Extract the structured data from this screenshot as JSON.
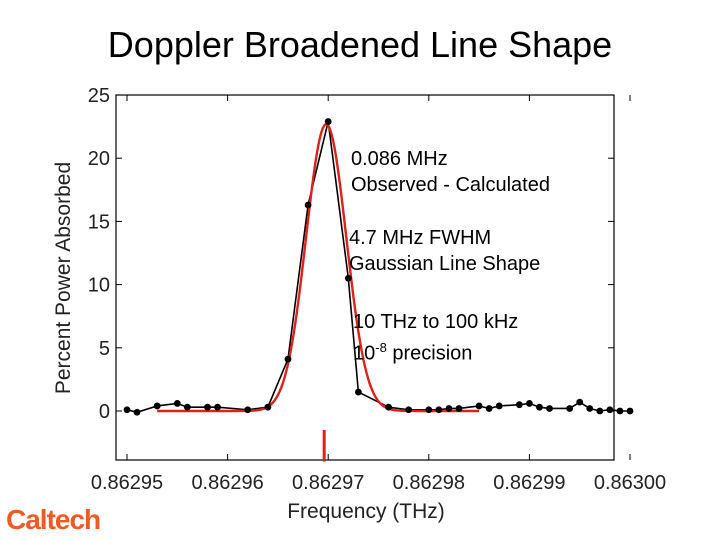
{
  "title": "Doppler Broadened Line Shape",
  "logo_text": "Caltech",
  "colors": {
    "fit": "#e0201b",
    "data": "#000000",
    "marker": "#e0201b",
    "logo": "#f05a22"
  },
  "annotations": [
    {
      "line1": "0.086 MHz",
      "line2": "Observed - Calculated"
    },
    {
      "line1": "4.7 MHz FWHM",
      "line2": "Gaussian Line Shape"
    },
    {
      "line1": "10 THz to 100 kHz",
      "line2_base": "10",
      "line2_sup": "-8",
      "line2_rest": " precision"
    }
  ],
  "chart_data": {
    "type": "line",
    "xlabel": "Frequency (THz)",
    "ylabel": "Percent Power Absorbed",
    "xlim": [
      0.86295,
      0.863
    ],
    "ylim": [
      0,
      25
    ],
    "xticks": [
      "0.86295",
      "0.86296",
      "0.86297",
      "0.86298",
      "0.86299",
      "0.86300"
    ],
    "yticks": [
      "0",
      "5",
      "10",
      "15",
      "20",
      "25"
    ],
    "grid": false,
    "series": [
      {
        "style": "line-with-markers",
        "x": [
          0.86295,
          0.862951,
          0.862953,
          0.862955,
          0.862956,
          0.862958,
          0.862959,
          0.862962,
          0.862964,
          0.862966,
          0.862968,
          0.86297,
          0.862972,
          0.862973,
          0.862976,
          0.862978,
          0.86298,
          0.862981,
          0.862982,
          0.862983,
          0.862985,
          0.862986,
          0.862987,
          0.862989,
          0.86299,
          0.862991,
          0.862992,
          0.862994,
          0.862995,
          0.862996,
          0.862997,
          0.862998,
          0.862999,
          0.863
        ],
        "y": [
          0.1,
          -0.1,
          0.4,
          0.6,
          0.3,
          0.3,
          0.3,
          0.1,
          0.3,
          4.1,
          16.3,
          22.9,
          10.5,
          1.5,
          0.3,
          0.1,
          0.1,
          0.1,
          0.2,
          0.2,
          0.4,
          0.2,
          0.4,
          0.5,
          0.6,
          0.3,
          0.2,
          0.2,
          0.7,
          0.2,
          0.0,
          0.1,
          0.0,
          0.0
        ]
      },
      {
        "style": "fit-curve",
        "center": 0.8629698,
        "fwhm": 4.7e-06,
        "peak": 22.7,
        "xrange": [
          0.862953,
          0.862985
        ]
      }
    ],
    "marker_line": {
      "x": 0.8629696,
      "y_bottom": -4.0,
      "y_top": -1.5
    }
  }
}
